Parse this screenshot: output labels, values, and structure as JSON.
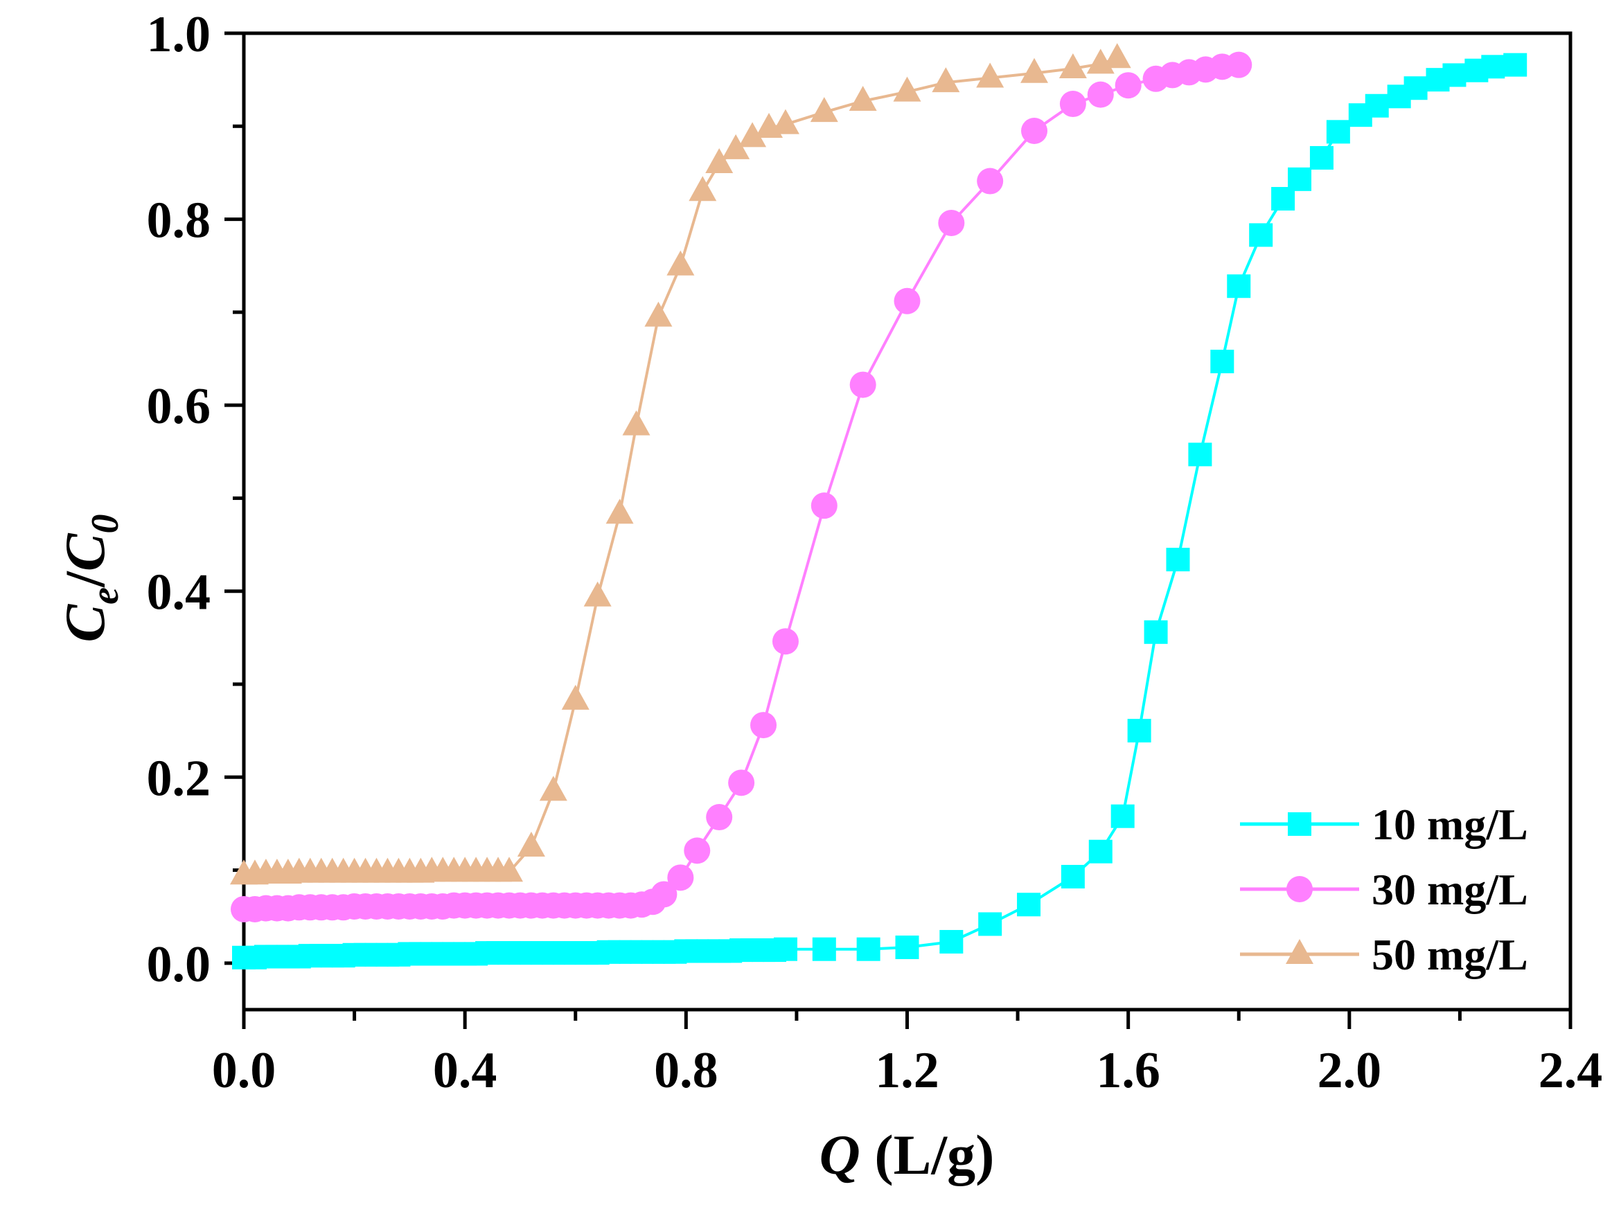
{
  "chart_data": {
    "type": "line",
    "title": "",
    "xlabel": {
      "var": "Q",
      "unit": " (L/g)"
    },
    "ylabel": {
      "c1": "C",
      "sub1": "e",
      "slash": "/",
      "c2": "C",
      "sub2": "0"
    },
    "xlim": [
      0.0,
      2.4
    ],
    "ylim": [
      -0.05,
      1.0
    ],
    "x_ticks": [
      "0.0",
      "0.4",
      "0.8",
      "1.2",
      "1.6",
      "2.0",
      "2.4"
    ],
    "y_ticks": [
      "0.0",
      "0.2",
      "0.4",
      "0.6",
      "0.8",
      "1.0"
    ],
    "grid": false,
    "legend_position": "bottom-right",
    "series": [
      {
        "name": "10 mg/L",
        "color": "#00FFFF",
        "marker": "square",
        "x": [
          0.0,
          0.02,
          0.04,
          0.06,
          0.08,
          0.1,
          0.12,
          0.14,
          0.16,
          0.18,
          0.2,
          0.22,
          0.24,
          0.26,
          0.28,
          0.3,
          0.32,
          0.34,
          0.36,
          0.38,
          0.4,
          0.42,
          0.44,
          0.46,
          0.48,
          0.5,
          0.52,
          0.54,
          0.56,
          0.58,
          0.6,
          0.62,
          0.64,
          0.66,
          0.68,
          0.7,
          0.72,
          0.74,
          0.76,
          0.78,
          0.8,
          0.82,
          0.84,
          0.86,
          0.88,
          0.9,
          0.92,
          0.94,
          0.96,
          0.98,
          1.05,
          1.13,
          1.2,
          1.28,
          1.35,
          1.42,
          1.5,
          1.55,
          1.59,
          1.62,
          1.65,
          1.69,
          1.73,
          1.77,
          1.8,
          1.84,
          1.88,
          1.91,
          1.95,
          1.98,
          2.02,
          2.05,
          2.09,
          2.12,
          2.16,
          2.19,
          2.23,
          2.26,
          2.3
        ],
        "values": [
          0.006,
          0.006,
          0.007,
          0.007,
          0.007,
          0.007,
          0.008,
          0.008,
          0.008,
          0.008,
          0.009,
          0.009,
          0.009,
          0.009,
          0.009,
          0.01,
          0.01,
          0.01,
          0.01,
          0.01,
          0.01,
          0.01,
          0.011,
          0.011,
          0.011,
          0.011,
          0.011,
          0.011,
          0.011,
          0.011,
          0.011,
          0.011,
          0.011,
          0.012,
          0.012,
          0.012,
          0.012,
          0.012,
          0.012,
          0.012,
          0.013,
          0.013,
          0.013,
          0.013,
          0.013,
          0.014,
          0.014,
          0.014,
          0.014,
          0.015,
          0.015,
          0.015,
          0.017,
          0.023,
          0.042,
          0.063,
          0.093,
          0.12,
          0.158,
          0.25,
          0.356,
          0.434,
          0.547,
          0.647,
          0.728,
          0.783,
          0.822,
          0.843,
          0.866,
          0.894,
          0.912,
          0.922,
          0.932,
          0.941,
          0.95,
          0.955,
          0.96,
          0.964,
          0.966
        ]
      },
      {
        "name": "30 mg/L",
        "color": "#FF80FF",
        "marker": "circle",
        "x": [
          0.0,
          0.02,
          0.04,
          0.06,
          0.08,
          0.1,
          0.12,
          0.14,
          0.16,
          0.18,
          0.2,
          0.22,
          0.24,
          0.26,
          0.28,
          0.3,
          0.32,
          0.34,
          0.36,
          0.38,
          0.4,
          0.42,
          0.44,
          0.46,
          0.48,
          0.5,
          0.52,
          0.54,
          0.56,
          0.58,
          0.6,
          0.62,
          0.64,
          0.66,
          0.68,
          0.7,
          0.72,
          0.74,
          0.76,
          0.79,
          0.82,
          0.86,
          0.9,
          0.94,
          0.98,
          1.05,
          1.12,
          1.2,
          1.28,
          1.35,
          1.43,
          1.5,
          1.55,
          1.6,
          1.65,
          1.68,
          1.71,
          1.74,
          1.77,
          1.8
        ],
        "values": [
          0.058,
          0.058,
          0.059,
          0.059,
          0.059,
          0.06,
          0.06,
          0.06,
          0.06,
          0.06,
          0.061,
          0.061,
          0.061,
          0.061,
          0.061,
          0.061,
          0.061,
          0.061,
          0.061,
          0.062,
          0.062,
          0.062,
          0.062,
          0.062,
          0.062,
          0.062,
          0.062,
          0.062,
          0.062,
          0.062,
          0.062,
          0.062,
          0.062,
          0.062,
          0.062,
          0.062,
          0.063,
          0.066,
          0.074,
          0.092,
          0.121,
          0.157,
          0.194,
          0.256,
          0.346,
          0.492,
          0.622,
          0.712,
          0.796,
          0.841,
          0.895,
          0.924,
          0.934,
          0.944,
          0.951,
          0.955,
          0.958,
          0.961,
          0.964,
          0.966
        ]
      },
      {
        "name": "50 mg/L",
        "color": "#E8B890",
        "marker": "triangle",
        "x": [
          0.0,
          0.02,
          0.04,
          0.06,
          0.08,
          0.1,
          0.12,
          0.14,
          0.16,
          0.18,
          0.2,
          0.22,
          0.24,
          0.26,
          0.28,
          0.3,
          0.32,
          0.34,
          0.36,
          0.38,
          0.4,
          0.42,
          0.44,
          0.46,
          0.48,
          0.52,
          0.56,
          0.6,
          0.64,
          0.68,
          0.71,
          0.75,
          0.79,
          0.83,
          0.86,
          0.89,
          0.92,
          0.95,
          0.98,
          1.05,
          1.12,
          1.2,
          1.27,
          1.35,
          1.43,
          1.5,
          1.55,
          1.58
        ],
        "values": [
          0.095,
          0.095,
          0.096,
          0.096,
          0.096,
          0.097,
          0.097,
          0.097,
          0.097,
          0.097,
          0.097,
          0.097,
          0.097,
          0.097,
          0.097,
          0.097,
          0.097,
          0.098,
          0.098,
          0.098,
          0.098,
          0.098,
          0.098,
          0.098,
          0.098,
          0.125,
          0.185,
          0.283,
          0.394,
          0.483,
          0.578,
          0.695,
          0.75,
          0.83,
          0.86,
          0.875,
          0.888,
          0.898,
          0.902,
          0.915,
          0.927,
          0.937,
          0.947,
          0.952,
          0.957,
          0.962,
          0.967,
          0.973
        ]
      }
    ]
  }
}
